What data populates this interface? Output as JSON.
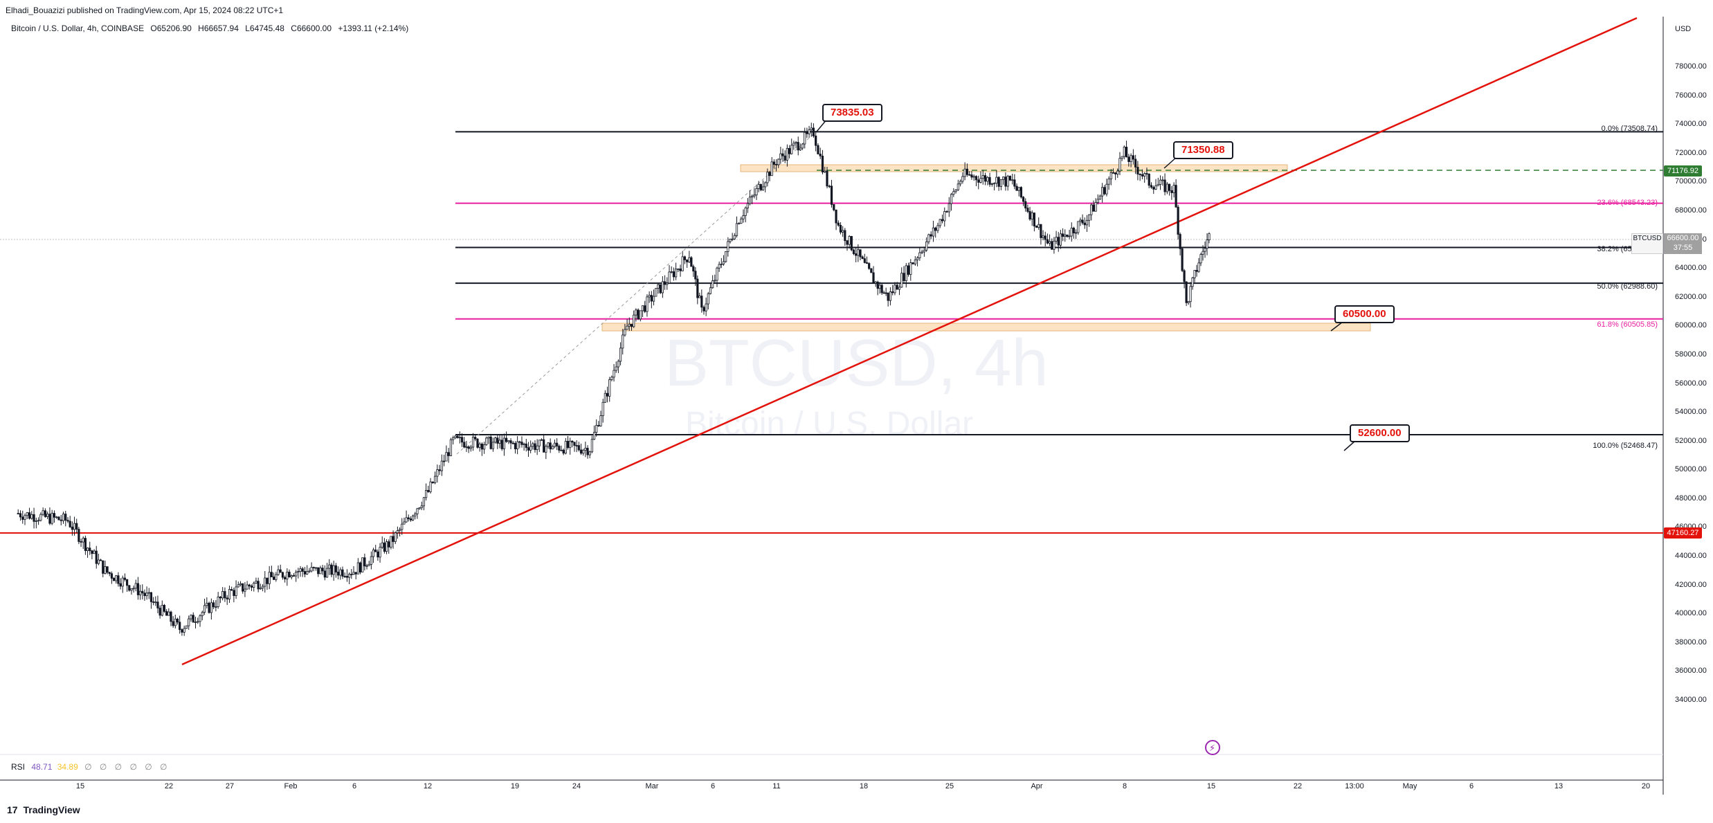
{
  "header": {
    "published": "Elhadi_Bouazizi published on TradingView.com, Apr 15, 2024 08:22 UTC+1",
    "symbol": "Bitcoin / U.S. Dollar, 4h, COINBASE",
    "open": "O65206.90",
    "high": "H66657.94",
    "low": "L64745.48",
    "close": "C66600.00",
    "change": "+1393.11 (+2.14%)"
  },
  "watermark": {
    "symbol": "BTCUSD, 4h",
    "name": "Bitcoin / U.S. Dollar"
  },
  "price_axis": {
    "currency": "USD",
    "ticks": [
      "78000.00",
      "76000.00",
      "74000.00",
      "72000.00",
      "70000.00",
      "68000.00",
      "66000.00",
      "64000.00",
      "62000.00",
      "60000.00",
      "58000.00",
      "56000.00",
      "54000.00",
      "52000.00",
      "50000.00",
      "48000.00",
      "46000.00",
      "44000.00",
      "42000.00",
      "40000.00",
      "38000.00",
      "36000.00",
      "34000.00"
    ],
    "tags": {
      "resistance": "71176.92",
      "support": "47160.27",
      "last_symbol": "BTCUSD",
      "last_price": "66600.00",
      "countdown": "37:55"
    }
  },
  "time_axis": [
    "15",
    "22",
    "27",
    "Feb",
    "6",
    "12",
    "19",
    "24",
    "Mar",
    "6",
    "11",
    "18",
    "25",
    "Apr",
    "8",
    "15",
    "22",
    "13:00",
    "May",
    "6",
    "13",
    "20"
  ],
  "fib_levels": [
    {
      "label": "0.0% (73508.74)",
      "price": 73508.74,
      "color": "#131722"
    },
    {
      "label": "23.6% (68543.23)",
      "price": 68543.23,
      "color": "#e91e9f"
    },
    {
      "label": "38.2% (65471.35)",
      "price": 65471.35,
      "color": "#131722"
    },
    {
      "label": "50.0% (62988.60)",
      "price": 62988.6,
      "color": "#131722"
    },
    {
      "label": "61.8% (60505.85)",
      "price": 60505.85,
      "color": "#e91e9f"
    },
    {
      "label": "100.0% (52468.47)",
      "price": 52468.47,
      "color": "#131722"
    }
  ],
  "callouts": [
    {
      "label": "73835.03"
    },
    {
      "label": "71350.88"
    },
    {
      "label": "60500.00"
    },
    {
      "label": "52600.00"
    }
  ],
  "rsi": {
    "label": "RSI",
    "value": "48.71",
    "signal": "34.89",
    "icons": "∅ ∅ ∅ ∅ ∅ ∅"
  },
  "footer": {
    "brand": "TradingView",
    "logo": "17"
  },
  "colors": {
    "trendline": "#e3120b",
    "fib_pink": "#e91e9f",
    "resistance_tag": "#2e7d32",
    "support_tag": "#e3120b",
    "zone": "#fbe3c4"
  },
  "chart_data": {
    "type": "candlestick",
    "title": "Bitcoin / U.S. Dollar, 4h, COINBASE",
    "ylabel": "USD",
    "ylim": [
      33000,
      79000
    ],
    "key_prices": {
      "high": 73835.03,
      "double_top": 71350.88,
      "support": 60500.0,
      "lower_support": 52600.0,
      "horizontal_support": 47160.27,
      "resistance_line": 71176.92
    },
    "path_points": [
      [
        "Jan 10",
        47000
      ],
      [
        "Jan 14",
        46500
      ],
      [
        "Jan 17",
        43000
      ],
      [
        "Jan 20",
        41500
      ],
      [
        "Jan 23",
        39000
      ],
      [
        "Jan 27",
        41500
      ],
      [
        "Feb 1",
        43000
      ],
      [
        "Feb 6",
        43000
      ],
      [
        "Feb 9",
        45000
      ],
      [
        "Feb 12",
        48500
      ],
      [
        "Feb 14",
        52000
      ],
      [
        "Feb 19",
        51800
      ],
      [
        "Feb 25",
        51500
      ],
      [
        "Feb 28",
        60000
      ],
      [
        "Mar 4",
        65000
      ],
      [
        "Mar 5",
        61000
      ],
      [
        "Mar 8",
        67500
      ],
      [
        "Mar 11",
        71500
      ],
      [
        "Mar 14",
        73500
      ],
      [
        "Mar 16",
        67000
      ],
      [
        "Mar 19",
        63000
      ],
      [
        "Mar 20",
        62000
      ],
      [
        "Mar 24",
        67000
      ],
      [
        "Mar 26",
        70500
      ],
      [
        "Mar 30",
        70000
      ],
      [
        "Apr 2",
        65500
      ],
      [
        "Apr 5",
        67500
      ],
      [
        "Apr 8",
        72000
      ],
      [
        "Apr 10",
        70000
      ],
      [
        "Apr 12",
        69500
      ],
      [
        "Apr 13",
        61500
      ],
      [
        "Apr 14",
        64500
      ],
      [
        "Apr 15",
        66600
      ]
    ]
  }
}
